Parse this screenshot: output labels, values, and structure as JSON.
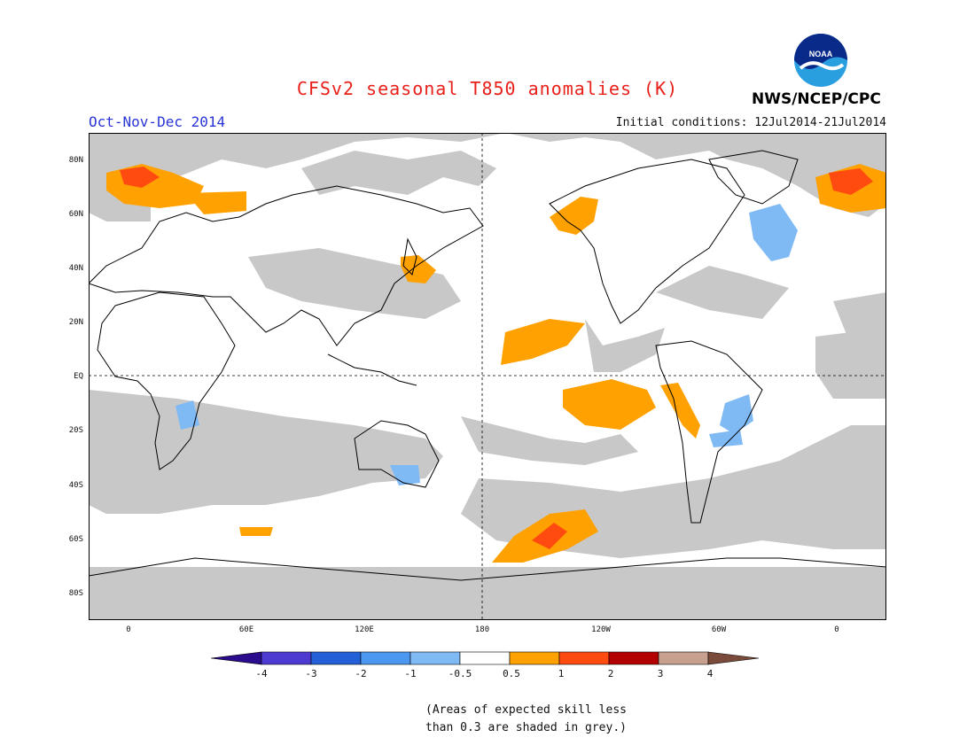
{
  "header": {
    "title": "CFSv2 seasonal T850 anomalies (K)",
    "season": "Oct-Nov-Dec 2014",
    "initial_conditions": "Initial conditions: 12Jul2014-21Jul2014",
    "agency": "NWS/NCEP/CPC",
    "logo_text": "NOAA"
  },
  "map": {
    "lat_labels": [
      "80N",
      "60N",
      "40N",
      "20N",
      "EQ",
      "20S",
      "40S",
      "60S",
      "80S"
    ],
    "lon_labels": [
      "0",
      "60E",
      "120E",
      "180",
      "120W",
      "60W",
      "0"
    ],
    "skill_shading_color": "#c8c8c8",
    "ocean_land_color": "#ffffff"
  },
  "colorbar": {
    "labels": [
      "-4",
      "-3",
      "-2",
      "-1",
      "-0.5",
      "0.5",
      "1",
      "2",
      "3",
      "4"
    ],
    "colors": [
      "#2b0c8c",
      "#4d3ad0",
      "#2360d8",
      "#4c98f0",
      "#7fbaf5",
      "#ffffff",
      "#ffa100",
      "#ff4a10",
      "#b30000",
      "#c8a090",
      "#7a4a3a"
    ]
  },
  "note": {
    "line1": "(Areas of expected skill less",
    "line2": "than 0.3 are shaded in grey.)"
  }
}
